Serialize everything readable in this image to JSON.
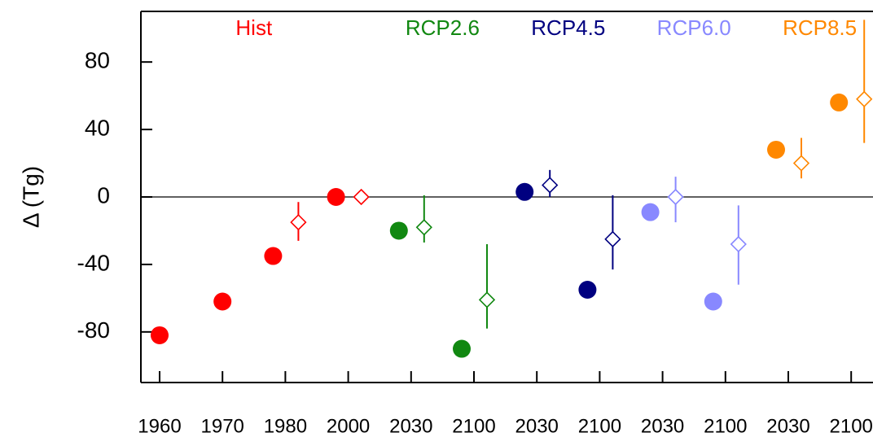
{
  "chart_data": {
    "type": "scatter",
    "ylabel": "Δ (Tg)",
    "categories": [
      "1960",
      "1970",
      "1980",
      "2000",
      "2030",
      "2100",
      "2030",
      "2100",
      "2030",
      "2100",
      "2030",
      "2100"
    ],
    "ylim": [
      -110,
      110
    ],
    "yticks": [
      -80,
      -40,
      0,
      40,
      80
    ],
    "series": [
      {
        "name": "Hist",
        "color": "#ff0000",
        "values": [
          -82,
          -62,
          -35,
          0,
          null,
          null,
          null,
          null,
          null,
          null,
          null,
          null
        ],
        "diamond_values": [
          null,
          null,
          -15,
          0,
          null,
          null,
          null,
          null,
          null,
          null,
          null,
          null
        ],
        "diamond_low": [
          null,
          null,
          -26,
          null,
          null,
          null,
          null,
          null,
          null,
          null,
          null,
          null
        ],
        "diamond_high": [
          null,
          null,
          -3,
          null,
          null,
          null,
          null,
          null,
          null,
          null,
          null,
          null
        ]
      },
      {
        "name": "RCP2.6",
        "color": "#118811",
        "values": [
          null,
          null,
          null,
          null,
          -20,
          -90,
          null,
          null,
          null,
          null,
          null,
          null
        ],
        "diamond_values": [
          null,
          null,
          null,
          null,
          -18,
          -61,
          null,
          null,
          null,
          null,
          null,
          null
        ],
        "diamond_low": [
          null,
          null,
          null,
          null,
          -27,
          -78,
          null,
          null,
          null,
          null,
          null,
          null
        ],
        "diamond_high": [
          null,
          null,
          null,
          null,
          1,
          -28,
          null,
          null,
          null,
          null,
          null,
          null
        ]
      },
      {
        "name": "RCP4.5",
        "color": "#000080",
        "values": [
          null,
          null,
          null,
          null,
          null,
          null,
          3,
          -55,
          null,
          null,
          null,
          null
        ],
        "diamond_values": [
          null,
          null,
          null,
          null,
          null,
          null,
          7,
          -25,
          null,
          null,
          null,
          null
        ],
        "diamond_low": [
          null,
          null,
          null,
          null,
          null,
          null,
          0,
          -43,
          null,
          null,
          null,
          null
        ],
        "diamond_high": [
          null,
          null,
          null,
          null,
          null,
          null,
          16,
          1,
          null,
          null,
          null,
          null
        ]
      },
      {
        "name": "RCP6.0",
        "color": "#8888ff",
        "values": [
          null,
          null,
          null,
          null,
          null,
          null,
          null,
          null,
          -9,
          -62,
          null,
          null
        ],
        "diamond_values": [
          null,
          null,
          null,
          null,
          null,
          null,
          null,
          null,
          0,
          -28,
          null,
          null
        ],
        "diamond_low": [
          null,
          null,
          null,
          null,
          null,
          null,
          null,
          null,
          -15,
          -52,
          null,
          null
        ],
        "diamond_high": [
          null,
          null,
          null,
          null,
          null,
          null,
          null,
          null,
          12,
          -5,
          null,
          null
        ]
      },
      {
        "name": "RCP8.5",
        "color": "#ff8800",
        "values": [
          null,
          null,
          null,
          null,
          null,
          null,
          null,
          null,
          null,
          null,
          28,
          56
        ],
        "diamond_values": [
          null,
          null,
          null,
          null,
          null,
          null,
          null,
          null,
          null,
          null,
          20,
          58
        ],
        "diamond_low": [
          null,
          null,
          null,
          null,
          null,
          null,
          null,
          null,
          null,
          null,
          11,
          32
        ],
        "diamond_high": [
          null,
          null,
          null,
          null,
          null,
          null,
          null,
          null,
          null,
          null,
          35,
          105
        ]
      }
    ]
  }
}
